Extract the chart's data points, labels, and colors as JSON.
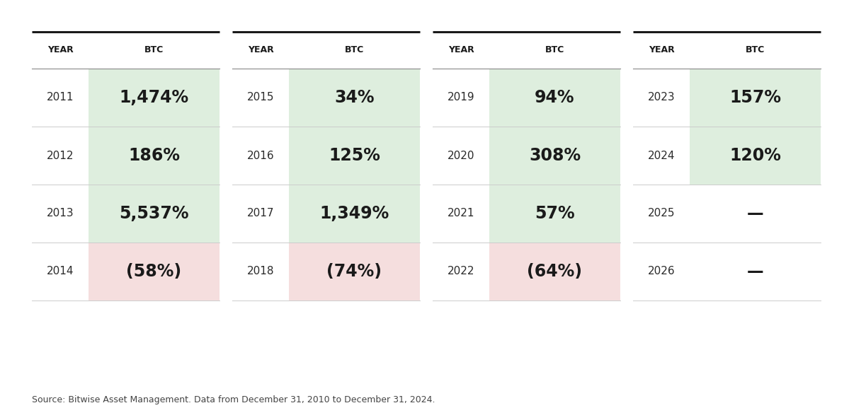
{
  "background_color": "#ffffff",
  "source_text": "Source: Bitwise Asset Management. Data from December 31, 2010 to December 31, 2024.",
  "header_year": "YEAR",
  "header_btc": "BTC",
  "green_bg": "#deeede",
  "red_bg": "#f5dede",
  "columns": [
    {
      "rows": [
        {
          "year": "2011",
          "btc": "1,474%",
          "bg": "green"
        },
        {
          "year": "2012",
          "btc": "186%",
          "bg": "green"
        },
        {
          "year": "2013",
          "btc": "5,537%",
          "bg": "green"
        },
        {
          "year": "2014",
          "btc": "(58%)",
          "bg": "red"
        }
      ]
    },
    {
      "rows": [
        {
          "year": "2015",
          "btc": "34%",
          "bg": "green"
        },
        {
          "year": "2016",
          "btc": "125%",
          "bg": "green"
        },
        {
          "year": "2017",
          "btc": "1,349%",
          "bg": "green"
        },
        {
          "year": "2018",
          "btc": "(74%)",
          "bg": "red"
        }
      ]
    },
    {
      "rows": [
        {
          "year": "2019",
          "btc": "94%",
          "bg": "green"
        },
        {
          "year": "2020",
          "btc": "308%",
          "bg": "green"
        },
        {
          "year": "2021",
          "btc": "57%",
          "bg": "green"
        },
        {
          "year": "2022",
          "btc": "(64%)",
          "bg": "red"
        }
      ]
    },
    {
      "rows": [
        {
          "year": "2023",
          "btc": "157%",
          "bg": "green"
        },
        {
          "year": "2024",
          "btc": "120%",
          "bg": "green"
        },
        {
          "year": "2025",
          "btc": "—",
          "bg": "none"
        },
        {
          "year": "2026",
          "btc": "—",
          "bg": "none"
        }
      ]
    }
  ]
}
